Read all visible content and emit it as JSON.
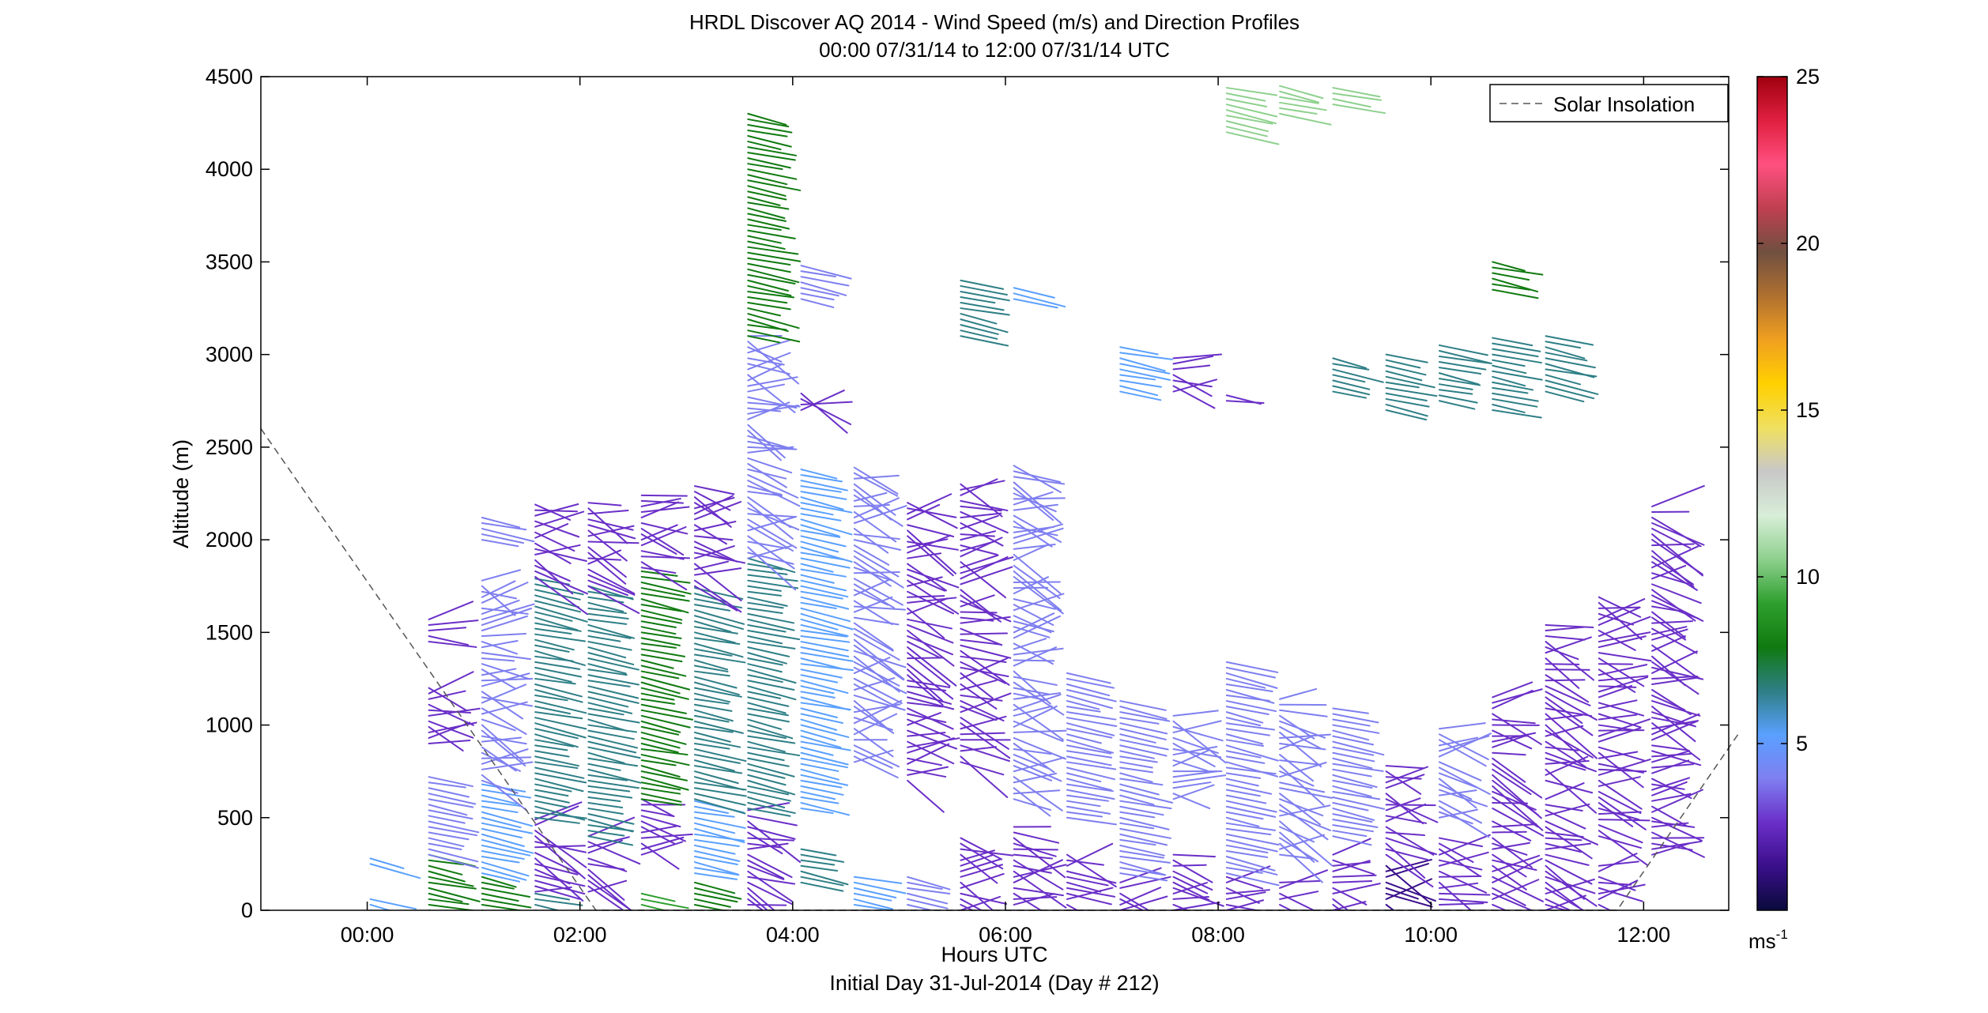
{
  "figure": {
    "title_line1": "HRDL Discover AQ 2014 - Wind Speed (m/s) and Direction Profiles",
    "title_line2": "00:00 07/31/14 to 12:00 07/31/14  UTC",
    "xlabel": "Hours UTC",
    "xlabel2": "Initial Day 31-Jul-2014 (Day # 212)",
    "ylabel": "Altitude (m)",
    "legend_label": "Solar Insolation",
    "colorbar_unit": "ms",
    "colorbar_unit_exp": "-1"
  },
  "chart_data": {
    "type": "scatter",
    "description_of_marks": "wind barb segments colored by wind speed",
    "xlim": [
      -1,
      12.8
    ],
    "ylim": [
      0,
      4500
    ],
    "xticks": [
      {
        "v": 0,
        "label": "00:00"
      },
      {
        "v": 2,
        "label": "02:00"
      },
      {
        "v": 4,
        "label": "04:00"
      },
      {
        "v": 6,
        "label": "06:00"
      },
      {
        "v": 8,
        "label": "08:00"
      },
      {
        "v": 10,
        "label": "10:00"
      },
      {
        "v": 12,
        "label": "12:00"
      }
    ],
    "yticks": [
      0,
      500,
      1000,
      1500,
      2000,
      2500,
      3000,
      3500,
      4000,
      4500
    ],
    "colorbar": {
      "min": 0,
      "max": 25,
      "ticks": [
        5,
        10,
        15,
        20,
        25
      ]
    },
    "colors": {
      "axis": "#000000",
      "solar_line": "#555555",
      "speed_scale": [
        "#0a0a3c",
        "#3a0f8a",
        "#6a2fc8",
        "#7f7ff0",
        "#5aa0ff",
        "#2e7f86",
        "#107a10",
        "#2ea02e",
        "#8ed08e",
        "#d8eed8",
        "#c8c8c8",
        "#f0e060",
        "#ffd000",
        "#f0a020",
        "#b07030",
        "#705040",
        "#c04050",
        "#ff5080",
        "#e02040",
        "#a00010"
      ]
    },
    "solar_insolation": [
      {
        "x": -1.0,
        "y": 2600
      },
      {
        "x": 2.15,
        "y": 0
      },
      {
        "x": 11.75,
        "y": 0
      },
      {
        "x": 12.9,
        "y": 960
      }
    ],
    "profiles": [
      {
        "t": 0.0,
        "segs": [
          [
            0,
            60,
            5
          ],
          [
            250,
            280,
            5.5
          ]
        ]
      },
      {
        "t": 0.55,
        "segs": [
          [
            0,
            300,
            8
          ],
          [
            300,
            720,
            4.5
          ],
          [
            900,
            1200,
            3
          ],
          [
            1450,
            1570,
            2
          ]
        ]
      },
      {
        "t": 1.05,
        "segs": [
          [
            0,
            200,
            8
          ],
          [
            200,
            700,
            5
          ],
          [
            700,
            1800,
            3.5
          ],
          [
            2000,
            2130,
            4
          ]
        ]
      },
      {
        "t": 1.55,
        "segs": [
          [
            0,
            100,
            6
          ],
          [
            100,
            500,
            2
          ],
          [
            500,
            1800,
            6
          ],
          [
            1800,
            2200,
            2.5
          ]
        ]
      },
      {
        "t": 2.05,
        "segs": [
          [
            100,
            400,
            2
          ],
          [
            400,
            1750,
            6.5
          ],
          [
            1750,
            2200,
            2.5
          ]
        ]
      },
      {
        "t": 2.55,
        "segs": [
          [
            0,
            100,
            9
          ],
          [
            300,
            600,
            2
          ],
          [
            600,
            1850,
            7.5
          ],
          [
            1850,
            2250,
            3
          ]
        ]
      },
      {
        "t": 3.05,
        "segs": [
          [
            0,
            150,
            8
          ],
          [
            200,
            600,
            5
          ],
          [
            600,
            1750,
            6
          ],
          [
            1750,
            2300,
            3
          ]
        ]
      },
      {
        "t": 3.55,
        "segs": [
          [
            0,
            550,
            3
          ],
          [
            550,
            1900,
            7
          ],
          [
            1900,
            3100,
            3.5
          ],
          [
            3100,
            4300,
            8.5
          ]
        ]
      },
      {
        "t": 4.05,
        "segs": [
          [
            150,
            350,
            6
          ],
          [
            550,
            2400,
            5.5
          ],
          [
            3300,
            3500,
            4.5
          ],
          [
            2700,
            2800,
            2
          ]
        ]
      },
      {
        "t": 4.55,
        "segs": [
          [
            0,
            200,
            5
          ],
          [
            800,
            2400,
            3.5
          ]
        ]
      },
      {
        "t": 5.05,
        "segs": [
          [
            0,
            200,
            4.5
          ],
          [
            700,
            2200,
            3
          ]
        ]
      },
      {
        "t": 5.55,
        "segs": [
          [
            0,
            400,
            3
          ],
          [
            800,
            2300,
            2.5
          ],
          [
            3100,
            3400,
            7
          ]
        ]
      },
      {
        "t": 6.05,
        "segs": [
          [
            0,
            450,
            3
          ],
          [
            600,
            2400,
            3.5
          ],
          [
            3300,
            3380,
            5
          ]
        ]
      },
      {
        "t": 6.55,
        "segs": [
          [
            0,
            300,
            3
          ],
          [
            500,
            1300,
            4
          ]
        ]
      },
      {
        "t": 7.05,
        "segs": [
          [
            0,
            150,
            3
          ],
          [
            200,
            1150,
            4
          ],
          [
            2800,
            3050,
            5
          ]
        ]
      },
      {
        "t": 7.55,
        "segs": [
          [
            0,
            300,
            3
          ],
          [
            600,
            1050,
            3.5
          ],
          [
            2800,
            3000,
            2.5
          ]
        ]
      },
      {
        "t": 8.05,
        "segs": [
          [
            0,
            200,
            3
          ],
          [
            200,
            1350,
            4
          ],
          [
            2750,
            2800,
            2.5
          ],
          [
            4200,
            4450,
            11
          ]
        ]
      },
      {
        "t": 8.55,
        "segs": [
          [
            0,
            150,
            2
          ],
          [
            300,
            1150,
            3.5
          ],
          [
            4300,
            4450,
            11
          ]
        ]
      },
      {
        "t": 9.05,
        "segs": [
          [
            0,
            300,
            2
          ],
          [
            400,
            1100,
            4.5
          ],
          [
            2800,
            3000,
            7
          ],
          [
            4350,
            4450,
            10
          ]
        ]
      },
      {
        "t": 9.55,
        "segs": [
          [
            0,
            250,
            1.5
          ],
          [
            300,
            800,
            3
          ],
          [
            2700,
            3000,
            6.5
          ]
        ]
      },
      {
        "t": 10.05,
        "segs": [
          [
            0,
            400,
            2
          ],
          [
            500,
            1000,
            3.5
          ],
          [
            2750,
            3050,
            6
          ]
        ]
      },
      {
        "t": 10.55,
        "segs": [
          [
            0,
            500,
            2
          ],
          [
            550,
            1150,
            3
          ],
          [
            2700,
            3100,
            7
          ],
          [
            3350,
            3500,
            8
          ]
        ]
      },
      {
        "t": 11.05,
        "segs": [
          [
            0,
            600,
            2.5
          ],
          [
            700,
            1550,
            3
          ],
          [
            2800,
            3100,
            7
          ]
        ]
      },
      {
        "t": 11.55,
        "segs": [
          [
            0,
            250,
            2
          ],
          [
            400,
            1700,
            2.5
          ]
        ]
      },
      {
        "t": 12.05,
        "segs": [
          [
            300,
            500,
            2
          ],
          [
            500,
            2200,
            3
          ]
        ]
      }
    ]
  }
}
